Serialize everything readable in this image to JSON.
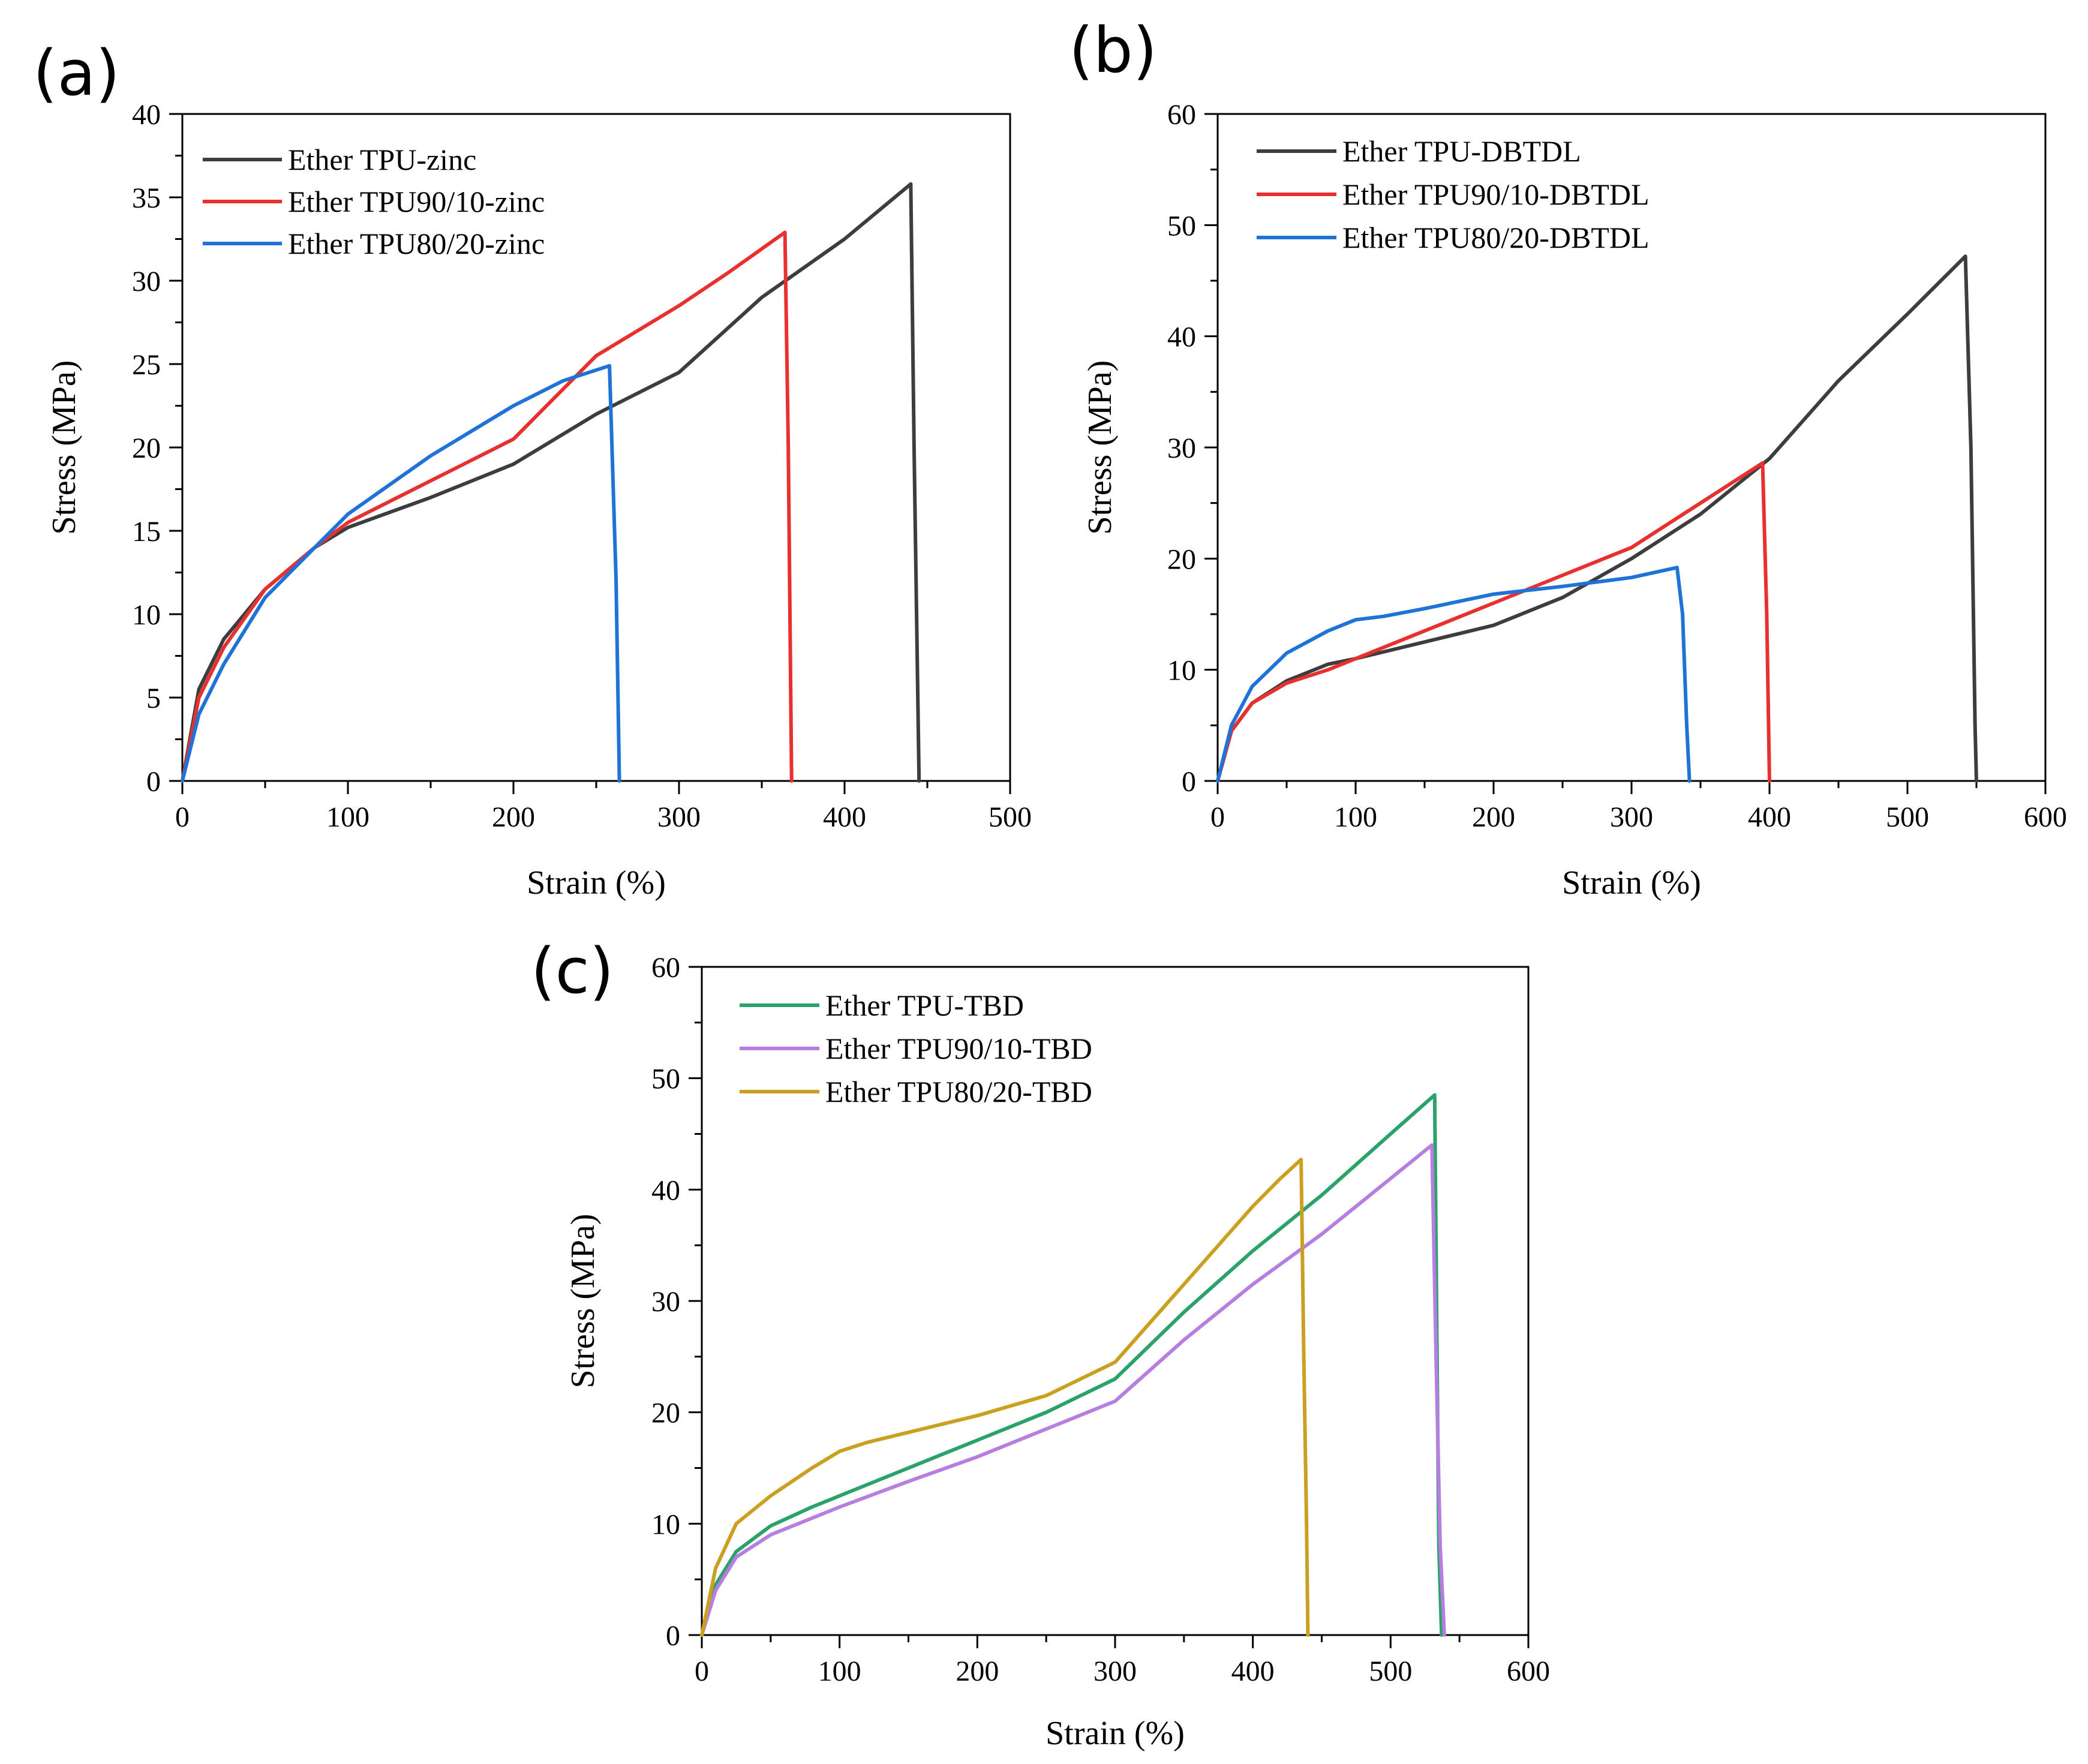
{
  "chart_data": [
    {
      "type": "line",
      "panel_label": "(a)",
      "xlabel": "Strain (%)",
      "ylabel": "Stress (MPa)",
      "xlim": [
        0,
        500
      ],
      "ylim": [
        0,
        40
      ],
      "xticks": [
        0,
        100,
        200,
        300,
        400,
        500
      ],
      "yticks": [
        0,
        5,
        10,
        15,
        20,
        25,
        30,
        35,
        40
      ],
      "legend_position": "top-left",
      "grid": false,
      "series": [
        {
          "name": "Ether TPU-zinc",
          "color": "#3d3d3d",
          "x": [
            0,
            10,
            25,
            50,
            80,
            100,
            150,
            200,
            250,
            300,
            350,
            400,
            440,
            442,
            445
          ],
          "y": [
            0,
            5.5,
            8.5,
            11.5,
            14,
            15.2,
            17,
            19,
            22,
            24.5,
            29,
            32.5,
            35.8,
            20,
            0
          ]
        },
        {
          "name": "Ether TPU90/10-zinc",
          "color": "#e8302e",
          "x": [
            0,
            10,
            25,
            50,
            80,
            100,
            150,
            200,
            250,
            300,
            330,
            364,
            366,
            368
          ],
          "y": [
            0,
            5,
            8,
            11.5,
            14,
            15.5,
            18,
            20.5,
            25.5,
            28.5,
            30.5,
            32.9,
            20,
            0
          ]
        },
        {
          "name": "Ether TPU80/20-zinc",
          "color": "#1f72d8",
          "x": [
            0,
            10,
            25,
            50,
            80,
            100,
            150,
            200,
            230,
            258,
            262,
            264
          ],
          "y": [
            0,
            4,
            7,
            11,
            14,
            16,
            19.5,
            22.5,
            24,
            24.9,
            12,
            0
          ]
        }
      ]
    },
    {
      "type": "line",
      "panel_label": "(b)",
      "xlabel": "Strain (%)",
      "ylabel": "Stress (MPa)",
      "xlim": [
        0,
        600
      ],
      "ylim": [
        0,
        60
      ],
      "xticks": [
        0,
        100,
        200,
        300,
        400,
        500,
        600
      ],
      "yticks": [
        0,
        10,
        20,
        30,
        40,
        50,
        60
      ],
      "legend_position": "top-left",
      "grid": false,
      "series": [
        {
          "name": "Ether TPU-DBTDL",
          "color": "#3d3d3d",
          "x": [
            0,
            10,
            25,
            50,
            80,
            100,
            150,
            200,
            250,
            300,
            350,
            400,
            450,
            500,
            542,
            546,
            549,
            550
          ],
          "y": [
            0,
            4.5,
            7,
            9,
            10.5,
            11,
            12.5,
            14,
            16.5,
            20,
            24,
            29,
            36,
            42,
            47.2,
            30,
            5,
            0
          ]
        },
        {
          "name": "Ether TPU90/10-DBTDL",
          "color": "#e8302e",
          "x": [
            0,
            10,
            25,
            50,
            80,
            100,
            150,
            200,
            250,
            300,
            350,
            395,
            398,
            400
          ],
          "y": [
            0,
            4.5,
            7,
            8.8,
            10,
            11,
            13.5,
            16,
            18.5,
            21,
            25,
            28.6,
            15,
            0
          ]
        },
        {
          "name": "Ether TPU80/20-DBTDL",
          "color": "#1f72d8",
          "x": [
            0,
            10,
            25,
            50,
            80,
            100,
            120,
            150,
            200,
            250,
            300,
            333,
            337,
            340,
            342
          ],
          "y": [
            0,
            5,
            8.5,
            11.5,
            13.5,
            14.5,
            14.8,
            15.5,
            16.8,
            17.5,
            18.3,
            19.2,
            15,
            5,
            0
          ]
        }
      ]
    },
    {
      "type": "line",
      "panel_label": "(c)",
      "xlabel": "Strain (%)",
      "ylabel": "Stress (MPa)",
      "xlim": [
        0,
        600
      ],
      "ylim": [
        0,
        60
      ],
      "xticks": [
        0,
        100,
        200,
        300,
        400,
        500,
        600
      ],
      "yticks": [
        0,
        10,
        20,
        30,
        40,
        50,
        60
      ],
      "legend_position": "top-left",
      "grid": false,
      "series": [
        {
          "name": "Ether TPU-TBD",
          "color": "#2ca26b",
          "x": [
            0,
            10,
            25,
            50,
            80,
            100,
            150,
            200,
            250,
            300,
            350,
            400,
            450,
            500,
            532,
            533,
            535,
            537
          ],
          "y": [
            0,
            4.5,
            7.5,
            9.8,
            11.5,
            12.5,
            15,
            17.5,
            20,
            23,
            29,
            34.5,
            39.5,
            45,
            48.5,
            35,
            8,
            0
          ]
        },
        {
          "name": "Ether TPU90/10-TBD",
          "color": "#b57ee0",
          "x": [
            0,
            10,
            25,
            50,
            80,
            100,
            150,
            200,
            250,
            300,
            350,
            400,
            450,
            500,
            530,
            533,
            536,
            539
          ],
          "y": [
            0,
            4,
            7,
            9,
            10.5,
            11.5,
            13.8,
            16,
            18.5,
            21,
            26.5,
            31.5,
            36,
            41,
            44,
            25,
            8,
            0
          ]
        },
        {
          "name": "Ether TPU80/20-TBD",
          "color": "#c9a020",
          "x": [
            0,
            10,
            25,
            50,
            80,
            100,
            120,
            150,
            200,
            250,
            300,
            350,
            400,
            420,
            435,
            437,
            439,
            440
          ],
          "y": [
            0,
            6,
            10,
            12.5,
            15,
            16.5,
            17.3,
            18.2,
            19.7,
            21.5,
            24.5,
            31.5,
            38.5,
            41,
            42.7,
            25,
            10,
            0
          ]
        }
      ]
    }
  ]
}
